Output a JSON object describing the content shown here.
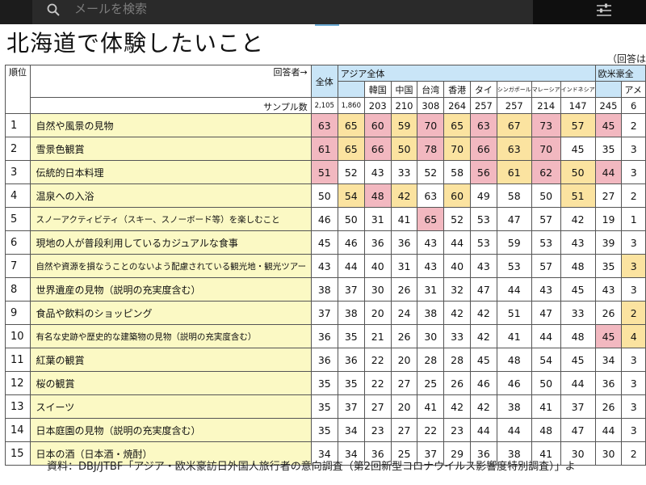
{
  "search": {
    "placeholder": "メールを検索"
  },
  "title": "北海道で体験したいこと",
  "note_right": "（回答はあ",
  "header": {
    "rank_label": "順位",
    "respondent_label": "回答者→",
    "sample_label": "サンプル数",
    "total_label": "全体",
    "asia_label": "アジア全体",
    "eu_label": "欧米豪全",
    "am_label": "アメ",
    "countries": [
      "韓国",
      "中国",
      "台湾",
      "香港",
      "タイ",
      "シンガポール",
      "マレーシア",
      "インドネシア"
    ],
    "samples": [
      "2,105",
      "1,860",
      "203",
      "210",
      "308",
      "264",
      "257",
      "257",
      "214",
      "147",
      "245",
      "6"
    ]
  },
  "rows": [
    {
      "rank": "1",
      "item": "自然や風景の見物",
      "values": [
        "63",
        "65",
        "60",
        "59",
        "70",
        "65",
        "63",
        "67",
        "73",
        "57",
        "45",
        "2"
      ],
      "colors": [
        "p",
        "y",
        "p",
        "y",
        "p",
        "y",
        "p",
        "y",
        "p",
        "y",
        "p",
        "w"
      ]
    },
    {
      "rank": "2",
      "item": "雪景色観賞",
      "values": [
        "61",
        "65",
        "66",
        "50",
        "78",
        "70",
        "66",
        "63",
        "70",
        "45",
        "35",
        "3"
      ],
      "colors": [
        "p",
        "y",
        "p",
        "y",
        "p",
        "y",
        "p",
        "y",
        "p",
        "w",
        "w",
        "w"
      ]
    },
    {
      "rank": "3",
      "item": "伝統的日本料理",
      "values": [
        "51",
        "52",
        "43",
        "33",
        "52",
        "58",
        "56",
        "61",
        "62",
        "50",
        "44",
        "3"
      ],
      "colors": [
        "p",
        "w",
        "w",
        "w",
        "w",
        "w",
        "p",
        "y",
        "p",
        "y",
        "p",
        "w"
      ]
    },
    {
      "rank": "4",
      "item": "温泉への入浴",
      "values": [
        "50",
        "54",
        "48",
        "42",
        "63",
        "60",
        "49",
        "58",
        "50",
        "51",
        "27",
        "2"
      ],
      "colors": [
        "w",
        "y",
        "p",
        "y",
        "w",
        "y",
        "w",
        "w",
        "w",
        "y",
        "w",
        "w"
      ]
    },
    {
      "rank": "5",
      "item": "スノーアクティビティ（スキー、スノーボード等）を楽しむこと",
      "values": [
        "46",
        "50",
        "31",
        "41",
        "65",
        "52",
        "53",
        "47",
        "57",
        "42",
        "19",
        "1"
      ],
      "colors": [
        "w",
        "w",
        "w",
        "w",
        "p",
        "w",
        "w",
        "w",
        "w",
        "w",
        "w",
        "w"
      ]
    },
    {
      "rank": "6",
      "item": "現地の人が普段利用しているカジュアルな食事",
      "values": [
        "45",
        "46",
        "36",
        "36",
        "43",
        "44",
        "53",
        "59",
        "53",
        "43",
        "39",
        "3"
      ],
      "colors": [
        "w",
        "w",
        "w",
        "w",
        "w",
        "w",
        "w",
        "w",
        "w",
        "w",
        "w",
        "w"
      ]
    },
    {
      "rank": "7",
      "item": "自然や資源を損なうことのないよう配慮されている観光地・観光ツアー",
      "values": [
        "43",
        "44",
        "40",
        "31",
        "43",
        "40",
        "43",
        "53",
        "57",
        "48",
        "35",
        "3"
      ],
      "colors": [
        "w",
        "w",
        "w",
        "w",
        "w",
        "w",
        "w",
        "w",
        "w",
        "w",
        "w",
        "y"
      ]
    },
    {
      "rank": "8",
      "item": "世界遺産の見物（説明の充実度含む）",
      "values": [
        "38",
        "37",
        "30",
        "26",
        "31",
        "32",
        "47",
        "44",
        "43",
        "45",
        "43",
        "3"
      ],
      "colors": [
        "w",
        "w",
        "w",
        "w",
        "w",
        "w",
        "w",
        "w",
        "w",
        "w",
        "w",
        "w"
      ]
    },
    {
      "rank": "9",
      "item": "食品や飲料のショッピング",
      "values": [
        "37",
        "38",
        "20",
        "24",
        "38",
        "42",
        "42",
        "51",
        "47",
        "33",
        "26",
        "2"
      ],
      "colors": [
        "w",
        "w",
        "w",
        "w",
        "w",
        "w",
        "w",
        "w",
        "w",
        "w",
        "w",
        "y"
      ]
    },
    {
      "rank": "10",
      "item": "有名な史跡や歴史的な建築物の見物（説明の充実度含む）",
      "values": [
        "36",
        "35",
        "21",
        "26",
        "30",
        "33",
        "42",
        "41",
        "44",
        "48",
        "45",
        "4"
      ],
      "colors": [
        "w",
        "w",
        "w",
        "w",
        "w",
        "w",
        "w",
        "w",
        "w",
        "w",
        "p",
        "y"
      ]
    },
    {
      "rank": "11",
      "item": "紅葉の観賞",
      "values": [
        "36",
        "36",
        "22",
        "20",
        "28",
        "28",
        "45",
        "48",
        "54",
        "45",
        "34",
        "3"
      ],
      "colors": [
        "w",
        "w",
        "w",
        "w",
        "w",
        "w",
        "w",
        "w",
        "w",
        "w",
        "w",
        "w"
      ]
    },
    {
      "rank": "12",
      "item": "桜の観賞",
      "values": [
        "35",
        "35",
        "22",
        "27",
        "25",
        "26",
        "46",
        "46",
        "50",
        "44",
        "36",
        "3"
      ],
      "colors": [
        "w",
        "w",
        "w",
        "w",
        "w",
        "w",
        "w",
        "w",
        "w",
        "w",
        "w",
        "w"
      ]
    },
    {
      "rank": "13",
      "item": "スイーツ",
      "values": [
        "35",
        "37",
        "27",
        "20",
        "41",
        "42",
        "42",
        "38",
        "41",
        "37",
        "26",
        "3"
      ],
      "colors": [
        "w",
        "w",
        "w",
        "w",
        "w",
        "w",
        "w",
        "w",
        "w",
        "w",
        "w",
        "w"
      ]
    },
    {
      "rank": "14",
      "item": "日本庭園の見物（説明の充実度含む）",
      "values": [
        "35",
        "34",
        "23",
        "27",
        "22",
        "23",
        "44",
        "44",
        "48",
        "47",
        "44",
        "3"
      ],
      "colors": [
        "w",
        "w",
        "w",
        "w",
        "w",
        "w",
        "w",
        "w",
        "w",
        "w",
        "w",
        "w"
      ]
    },
    {
      "rank": "15",
      "item": "日本の酒（日本酒・焼酎）",
      "values": [
        "34",
        "34",
        "36",
        "25",
        "37",
        "29",
        "36",
        "38",
        "41",
        "30",
        "30",
        "2"
      ],
      "colors": [
        "w",
        "w",
        "w",
        "w",
        "w",
        "w",
        "w",
        "w",
        "w",
        "w",
        "w",
        "w"
      ]
    }
  ],
  "source": "資料：DBJ/JTBF「アジア・欧米豪訪日外国人旅行者の意向調査（第2回新型コロナウイルス影響度特別調査）」よ",
  "colors": {
    "pink": "#f2b8c0",
    "yellow": "#fbe3a0",
    "blue_header": "#c9e5f7",
    "item_bg": "#fbf9c4"
  }
}
